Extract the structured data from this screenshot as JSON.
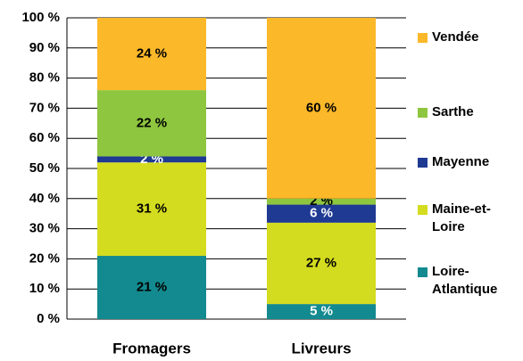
{
  "chart_data": {
    "type": "stacked_bar",
    "categories": [
      "Fromagers",
      "Livreurs"
    ],
    "series": [
      {
        "name": "Loire-Atlantique",
        "color": "#138a8f",
        "values": [
          21,
          5
        ],
        "value_labels": [
          "21 %",
          "5 %"
        ]
      },
      {
        "name": "Maine-et-Loire",
        "color": "#d4dc1f",
        "values": [
          31,
          27
        ],
        "value_labels": [
          "31 %",
          "27 %"
        ]
      },
      {
        "name": "Mayenne",
        "color": "#1f3a93",
        "values": [
          2,
          6
        ],
        "value_labels": [
          "2 %",
          "6 %"
        ]
      },
      {
        "name": "Sarthe",
        "color": "#8ec63f",
        "values": [
          22,
          2
        ],
        "value_labels": [
          "22 %",
          "2 %"
        ]
      },
      {
        "name": "Vendée",
        "color": "#fbb829",
        "values": [
          24,
          60
        ],
        "value_labels": [
          "24 %",
          "60 %"
        ]
      }
    ],
    "ylim": [
      0,
      100
    ],
    "yticks": [
      {
        "value": 0,
        "label": "0 %"
      },
      {
        "value": 10,
        "label": "10 %"
      },
      {
        "value": 20,
        "label": "20 %"
      },
      {
        "value": 30,
        "label": "30 %"
      },
      {
        "value": 40,
        "label": "40 %"
      },
      {
        "value": 50,
        "label": "50 %"
      },
      {
        "value": 60,
        "label": "60 %"
      },
      {
        "value": 70,
        "label": "70 %"
      },
      {
        "value": 80,
        "label": "80 %"
      },
      {
        "value": 90,
        "label": "90 %"
      },
      {
        "value": 100,
        "label": "100 %"
      }
    ],
    "grid": true,
    "legend": "right"
  }
}
